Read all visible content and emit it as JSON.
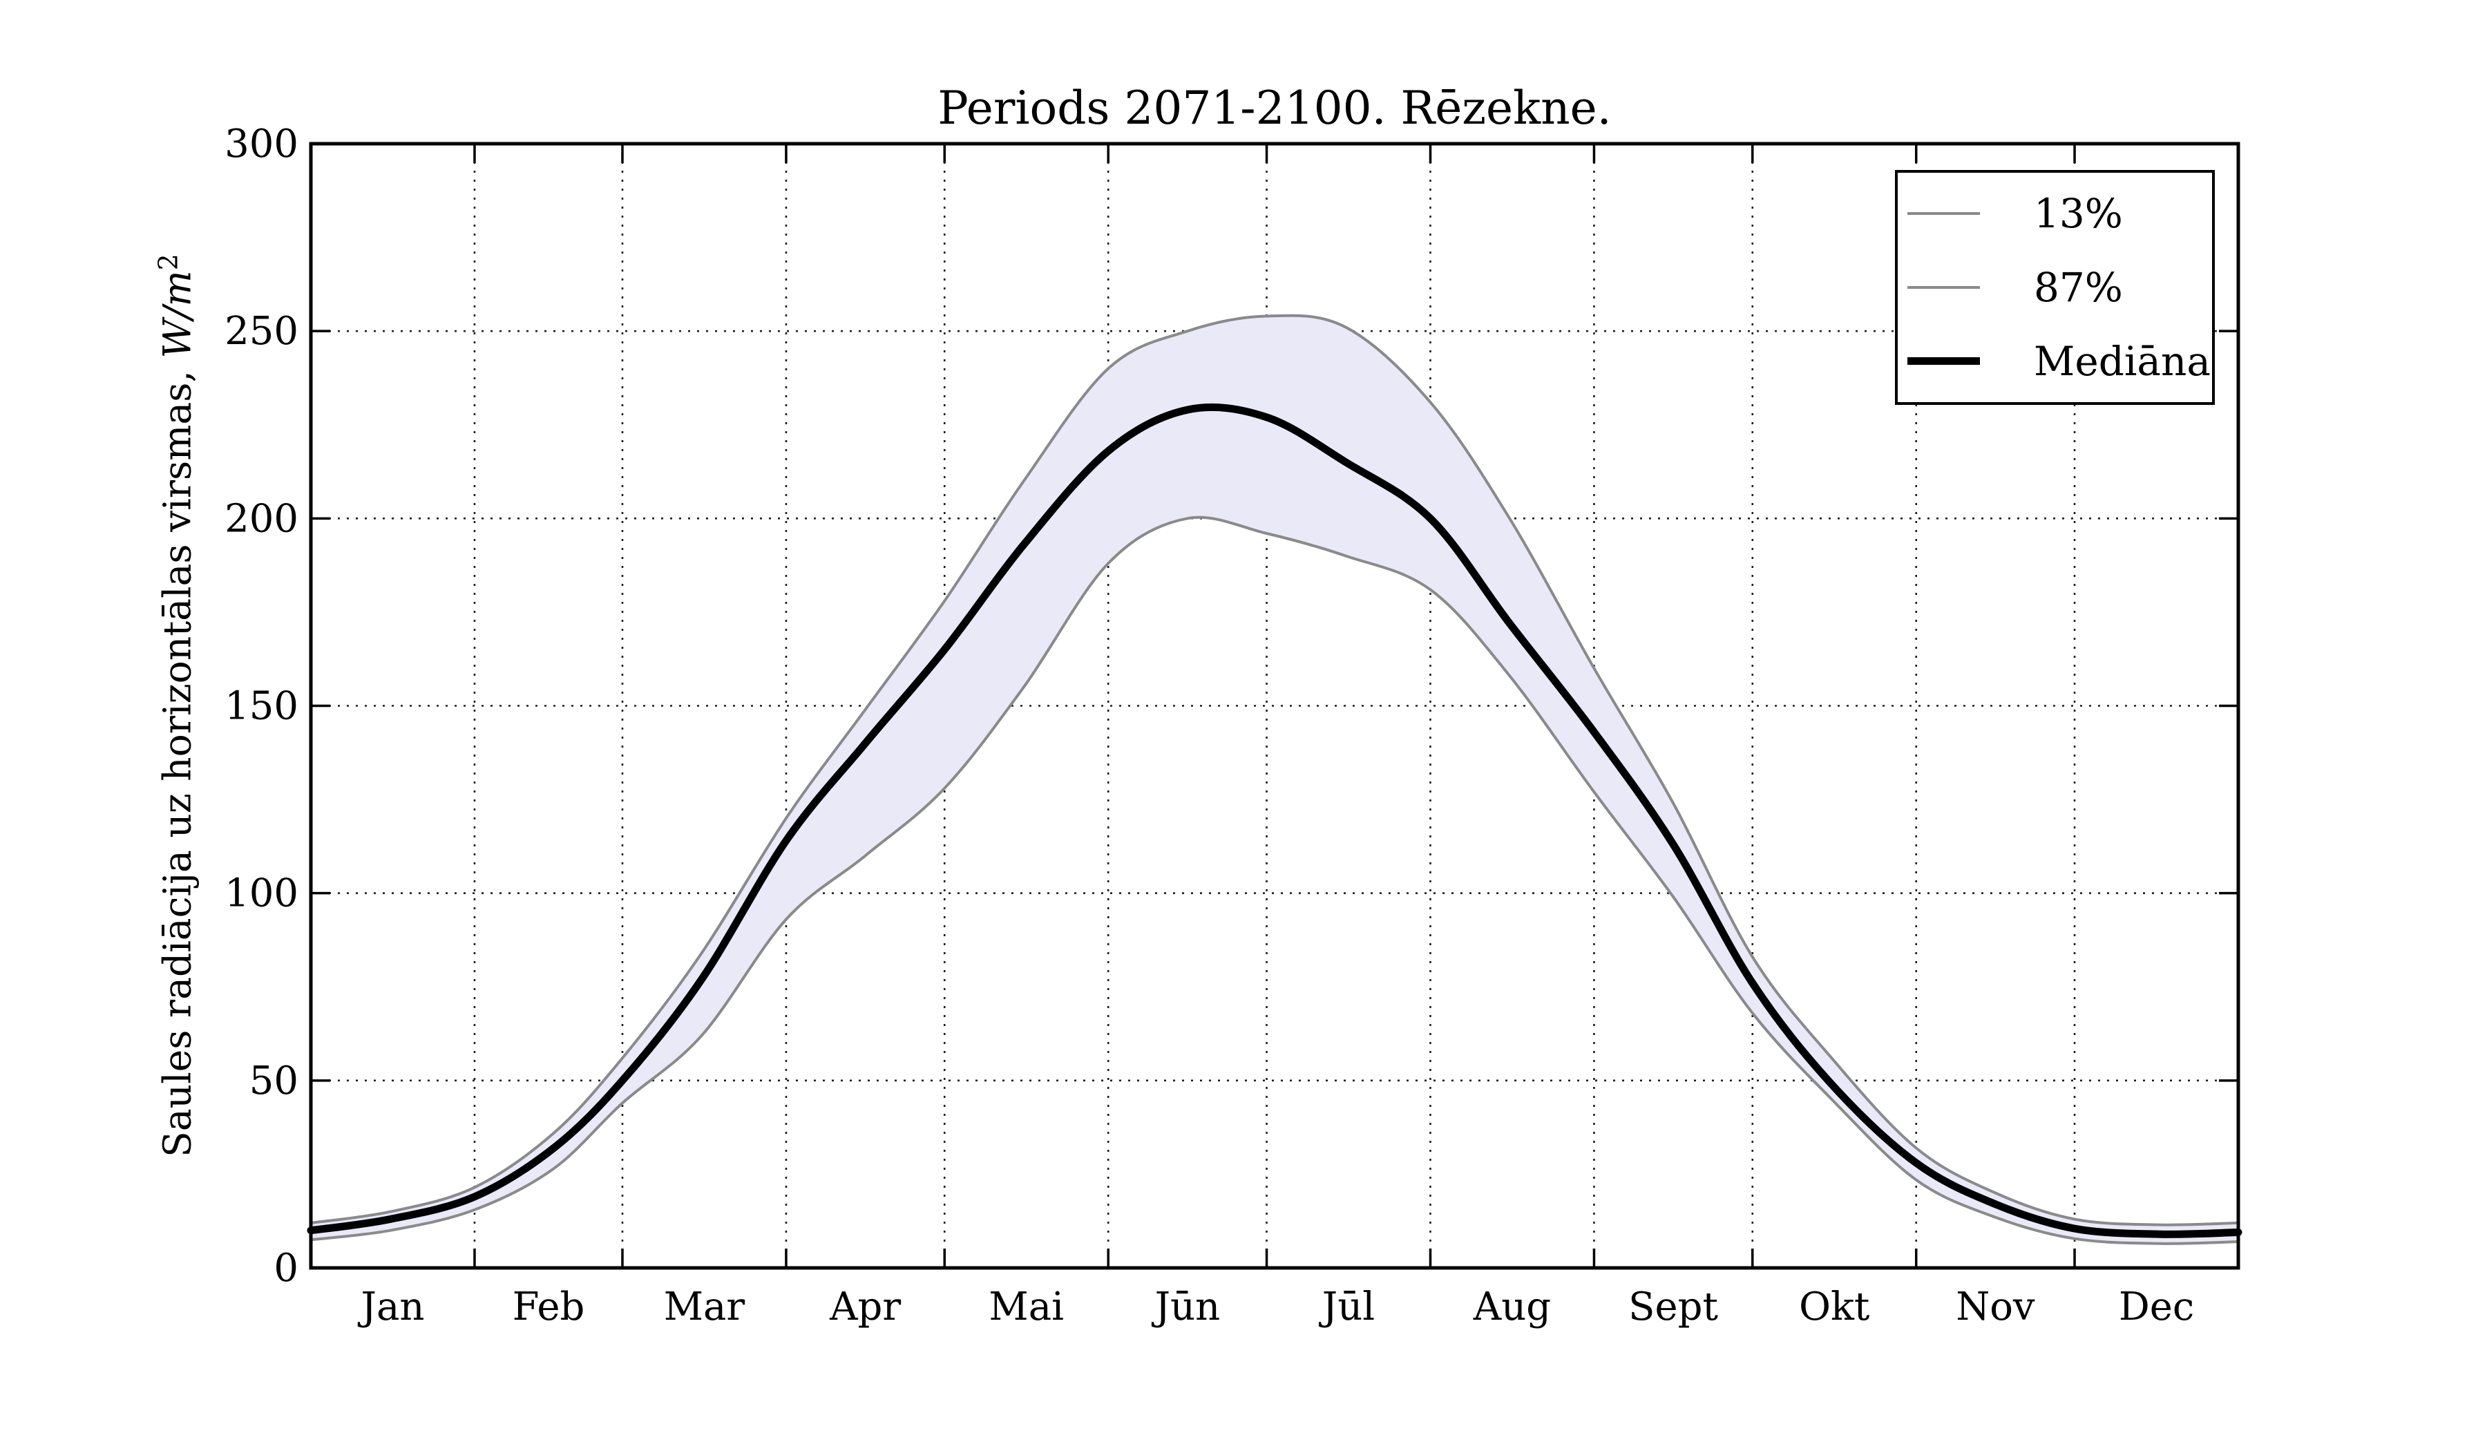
{
  "chart_data": {
    "type": "line",
    "title": "Periods 2071-2100. Rēzekne.",
    "ylabel_prefix": "Saules radiācija uz horizontālas virsmas, ",
    "ylabel_unit": "W/m",
    "ylabel_exponent": "2",
    "x_tick_labels": [
      "Jan",
      "Feb",
      "Mar",
      "Apr",
      "Mai",
      "Jūn",
      "Jūl",
      "Aug",
      "Sept",
      "Okt",
      "Nov",
      "Dec"
    ],
    "month_days": [
      31,
      28,
      31,
      30,
      31,
      30,
      31,
      31,
      30,
      31,
      30,
      31
    ],
    "ylim": [
      0,
      300
    ],
    "yticks": [
      0,
      50,
      100,
      150,
      200,
      250,
      300
    ],
    "grid": "dotted",
    "x_days": [
      0,
      15,
      31,
      46,
      59,
      74,
      90,
      105,
      120,
      135,
      151,
      166,
      181,
      196,
      212,
      227,
      243,
      258,
      273,
      288,
      304,
      319,
      334,
      350,
      365
    ],
    "series": [
      {
        "name": "13%",
        "values": [
          7.5,
          10,
          15.5,
          26.5,
          44,
          62,
          93,
          110,
          128,
          155,
          188,
          200,
          196,
          190,
          181,
          158,
          127,
          99,
          68,
          45,
          23.5,
          13.5,
          7.8,
          6.5,
          7
        ],
        "color": "#8a8a8a",
        "width": 4
      },
      {
        "name": "87%",
        "values": [
          12,
          15,
          21.5,
          36,
          56,
          84,
          120,
          149,
          178,
          210,
          240,
          250,
          254,
          251,
          231,
          200,
          160,
          124,
          83,
          56,
          32,
          20,
          13,
          11.5,
          12
        ],
        "color": "#8a8a8a",
        "width": 4
      },
      {
        "name": "Mediāna",
        "values": [
          10,
          13,
          19,
          32,
          50,
          77,
          114,
          140,
          165,
          193,
          218,
          229,
          227,
          215,
          200,
          172,
          143,
          113,
          76,
          49,
          28,
          17,
          10.5,
          9,
          9.5
        ],
        "color": "#000000",
        "width": 11
      }
    ],
    "band": {
      "between": [
        "13%",
        "87%"
      ],
      "fill": "#e9e9f8"
    },
    "legend": {
      "position": "upper-right",
      "entries": [
        {
          "label": "13%",
          "color": "#8a8a8a",
          "thickness": 4
        },
        {
          "label": "87%",
          "color": "#8a8a8a",
          "thickness": 4
        },
        {
          "label": "Mediāna",
          "color": "#000000",
          "thickness": 11
        }
      ]
    },
    "axis_color": "#000000",
    "grid_color": "#111111",
    "tick_label_fontsize": 56,
    "plot_bg": "#ffffff"
  }
}
